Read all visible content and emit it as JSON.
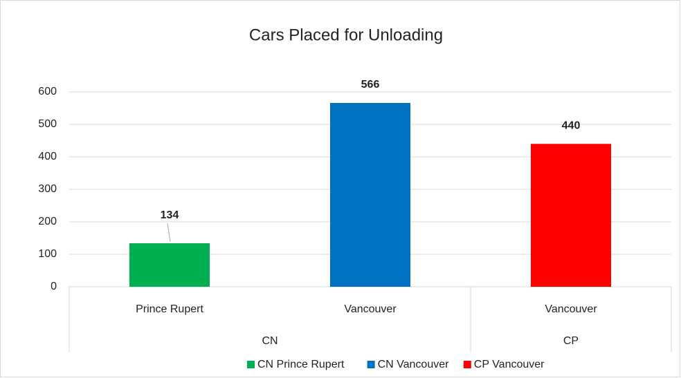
{
  "chart_data": {
    "type": "bar",
    "title": "Cars Placed for Unloading",
    "categories": [
      "Prince Rupert",
      "Vancouver",
      "Vancouver"
    ],
    "groups": [
      {
        "name": "CN",
        "categories": [
          0,
          1
        ]
      },
      {
        "name": "CP",
        "categories": [
          2
        ]
      }
    ],
    "series": [
      {
        "name": "CN Prince Rupert",
        "color": "#00b050",
        "values": [
          134,
          null,
          null
        ]
      },
      {
        "name": "CN Vancouver",
        "color": "#0070c0",
        "values": [
          null,
          566,
          null
        ]
      },
      {
        "name": "CP Vancouver",
        "color": "#ff0000",
        "values": [
          null,
          null,
          440
        ]
      }
    ],
    "ylim": [
      0,
      600
    ],
    "yticks": [
      0,
      100,
      200,
      300,
      400,
      500,
      600
    ],
    "grid": true,
    "legend": "bottom"
  }
}
